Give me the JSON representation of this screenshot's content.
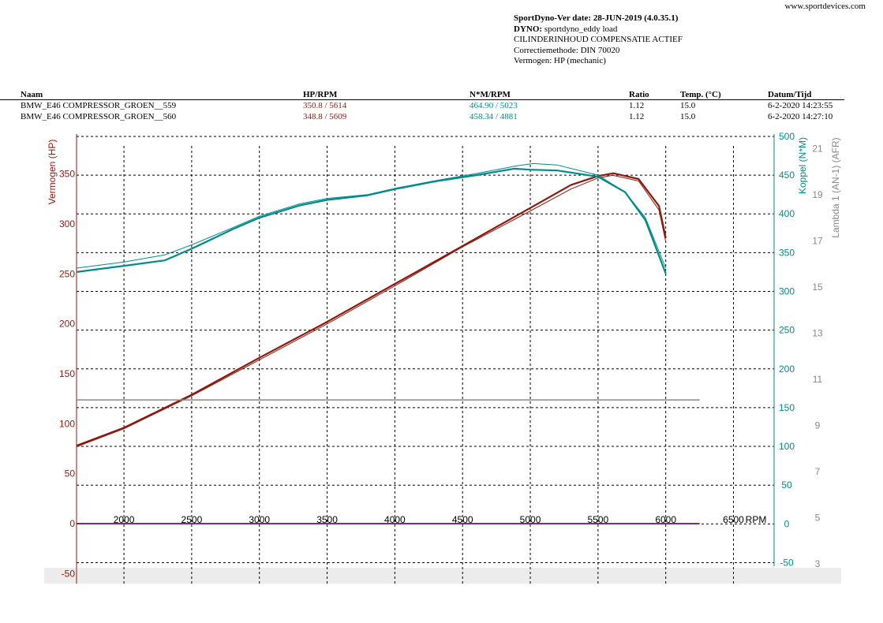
{
  "site": "www.sportdevices.com",
  "header": {
    "line1_bold": "SportDyno-Ver date: 28-JUN-2019 (4.0.35.1)",
    "line2_label": "DYNO:",
    "line2_value": "sportdyno_eddy load",
    "line3": "CILINDERINHOUD COMPENSATIE ACTIEF",
    "line4": "Correctiemethode: DIN 70020",
    "line5": "Vermogen: HP (mechanic)"
  },
  "table": {
    "headers": [
      "Naam",
      "HP/RPM",
      "N*M/RPM",
      "Ratio",
      "Temp. (°C)",
      "Datum/Tijd"
    ],
    "rows": [
      [
        "BMW_E46 COMPRESSOR_GROEN__559",
        "350.8 / 5614",
        "464.90 / 5023",
        "1.12",
        "15.0",
        "6-2-2020 14:23:55"
      ],
      [
        "BMW_E46 COMPRESSOR_GROEN__560",
        "348.8 / 5609",
        "458.34 / 4881",
        "1.12",
        "15.0",
        "6-2-2020 14:27:10"
      ]
    ]
  },
  "colors": {
    "power": "#8b1a0e",
    "torque": "#008b8b",
    "lambda": "#888888",
    "grid": "#000000",
    "plot_bg_bottom": "#ececec"
  },
  "chart_data": {
    "type": "line",
    "xlabel": "RPM",
    "xlim": [
      1650,
      6800
    ],
    "x_ticks": [
      2000,
      2500,
      3000,
      3500,
      4000,
      4500,
      5000,
      5500,
      6000,
      6500
    ],
    "y_left": {
      "label": "Vermogen (HP)",
      "lim": [
        -60,
        390
      ],
      "ticks": [
        -50,
        0,
        50,
        100,
        150,
        200,
        250,
        300,
        350
      ]
    },
    "y_right1": {
      "label": "Koppel (N*M)",
      "lim": [
        -77,
        503
      ],
      "ticks": [
        -50,
        0,
        50,
        100,
        150,
        200,
        250,
        300,
        350,
        400,
        450,
        500
      ]
    },
    "y_right2": {
      "label": "Lambda 1 (AN-1) (AFR)",
      "lim": [
        2.14,
        21.64
      ],
      "ticks": [
        3,
        5,
        7,
        9,
        11,
        13,
        15,
        17,
        19,
        21
      ]
    },
    "grid": true,
    "series": [
      {
        "name": "BMW_E46 COMPRESSOR_GROEN__559",
        "quantity": "Vermogen (HP)",
        "axis": "left",
        "x": [
          1650,
          2000,
          2500,
          3000,
          3500,
          4000,
          4500,
          5000,
          5300,
          5500,
          5614,
          5800,
          5950,
          6000
        ],
        "y": [
          78,
          96,
          129,
          166,
          202,
          240,
          278,
          316,
          339,
          348,
          350.8,
          345,
          318,
          286
        ]
      },
      {
        "name": "BMW_E46 COMPRESSOR_GROEN__560",
        "quantity": "Vermogen (HP)",
        "axis": "left",
        "x": [
          1650,
          2000,
          2500,
          3000,
          3500,
          4000,
          4500,
          5000,
          5300,
          5500,
          5609,
          5800,
          5950,
          6000
        ],
        "y": [
          77,
          95,
          128,
          164,
          200,
          238,
          277,
          313,
          335,
          346,
          348.8,
          343,
          314,
          282
        ]
      },
      {
        "name": "BMW_E46 COMPRESSOR_GROEN__559",
        "quantity": "Koppel (N*M)",
        "axis": "right1",
        "x": [
          1650,
          2000,
          2300,
          2500,
          2800,
          3000,
          3300,
          3500,
          3800,
          4000,
          4300,
          4600,
          4900,
          5023,
          5200,
          5500,
          5700,
          5850,
          6000
        ],
        "y": [
          330,
          338,
          347,
          360,
          382,
          397,
          413,
          420,
          425,
          433,
          443,
          452,
          462,
          464.9,
          463,
          450,
          428,
          395,
          330
        ]
      },
      {
        "name": "BMW_E46 COMPRESSOR_GROEN__560",
        "quantity": "Koppel (N*M)",
        "axis": "right1",
        "x": [
          1650,
          2000,
          2300,
          2500,
          2800,
          3000,
          3300,
          3500,
          3800,
          4000,
          4300,
          4600,
          4881,
          5000,
          5200,
          5500,
          5700,
          5850,
          6000
        ],
        "y": [
          325,
          333,
          340,
          355,
          380,
          395,
          411,
          418,
          424,
          432,
          442,
          450,
          458.34,
          457,
          456,
          448,
          428,
          392,
          323
        ]
      },
      {
        "name": "Lambda 1 (AN-1) (AFR)",
        "quantity": "Lambda 1 (AN-1) (AFR)",
        "axis": "right1",
        "x": [
          1650,
          6250
        ],
        "y": [
          160,
          160
        ]
      },
      {
        "name": "baseline",
        "quantity": "Vermogen (HP)",
        "axis": "left",
        "x": [
          1650,
          6250
        ],
        "y": [
          0,
          0
        ]
      }
    ]
  }
}
